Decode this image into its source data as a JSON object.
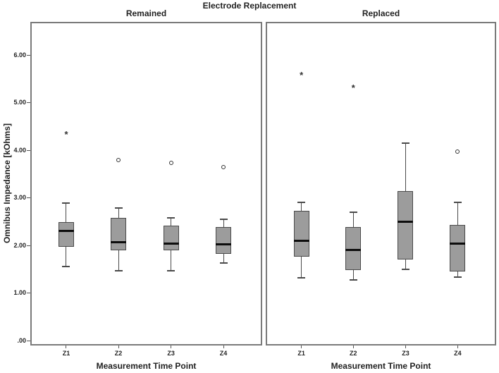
{
  "colors": {
    "box_fill": "#9c9c9c",
    "box_border": "#4a4a4a",
    "median": "#0d0d0d",
    "whisker": "#4a4a4a",
    "panel_border": "#7a7a7a",
    "tick": "#555555",
    "outlier": "#333333",
    "text": "#222222",
    "background": "#ffffff"
  },
  "chart_data": {
    "type": "boxplot",
    "title": "Electrode Replacement",
    "xlabel": "Measurement Time Point",
    "ylabel": "Omnibus Impedance [kOhms]",
    "categories": [
      "Z1",
      "Z2",
      "Z3",
      "Z4"
    ],
    "ylim": [
      -0.1,
      6.7
    ],
    "grid": false,
    "legend": "none",
    "y_ticks": [
      {
        "label": "6.00",
        "value": 6.0
      },
      {
        "label": "5.00",
        "value": 5.0
      },
      {
        "label": "4.00",
        "value": 4.0
      },
      {
        "label": "3.00",
        "value": 3.0
      },
      {
        "label": "2.00",
        "value": 2.0
      },
      {
        "label": "1.00",
        "value": 1.0
      },
      {
        "label": ".00",
        "value": 0.0
      }
    ],
    "panels": [
      {
        "label": "Remained",
        "boxes": [
          {
            "category": "Z1",
            "whisker_low": 1.55,
            "q1": 1.97,
            "median": 2.31,
            "q3": 2.49,
            "whisker_high": 2.89,
            "outliers": [
              {
                "value": 4.35,
                "symbol": "asterisk"
              }
            ]
          },
          {
            "category": "Z2",
            "whisker_low": 1.47,
            "q1": 1.89,
            "median": 2.07,
            "q3": 2.58,
            "whisker_high": 2.79,
            "outliers": [
              {
                "value": 3.79,
                "symbol": "circle"
              }
            ]
          },
          {
            "category": "Z3",
            "whisker_low": 1.46,
            "q1": 1.89,
            "median": 2.04,
            "q3": 2.42,
            "whisker_high": 2.58,
            "outliers": [
              {
                "value": 3.73,
                "symbol": "circle"
              }
            ]
          },
          {
            "category": "Z4",
            "whisker_low": 1.63,
            "q1": 1.82,
            "median": 2.02,
            "q3": 2.39,
            "whisker_high": 2.55,
            "outliers": [
              {
                "value": 3.65,
                "symbol": "circle"
              }
            ]
          }
        ]
      },
      {
        "label": "Replaced",
        "boxes": [
          {
            "category": "Z1",
            "whisker_low": 1.32,
            "q1": 1.76,
            "median": 2.1,
            "q3": 2.73,
            "whisker_high": 2.9,
            "outliers": [
              {
                "value": 5.6,
                "symbol": "asterisk"
              }
            ]
          },
          {
            "category": "Z2",
            "whisker_low": 1.27,
            "q1": 1.48,
            "median": 1.91,
            "q3": 2.38,
            "whisker_high": 2.7,
            "outliers": [
              {
                "value": 5.33,
                "symbol": "asterisk"
              }
            ]
          },
          {
            "category": "Z3",
            "whisker_low": 1.49,
            "q1": 1.71,
            "median": 2.5,
            "q3": 3.14,
            "whisker_high": 4.15,
            "outliers": []
          },
          {
            "category": "Z4",
            "whisker_low": 1.34,
            "q1": 1.45,
            "median": 2.03,
            "q3": 2.43,
            "whisker_high": 2.91,
            "outliers": [
              {
                "value": 3.97,
                "symbol": "circle"
              }
            ]
          }
        ]
      }
    ]
  }
}
